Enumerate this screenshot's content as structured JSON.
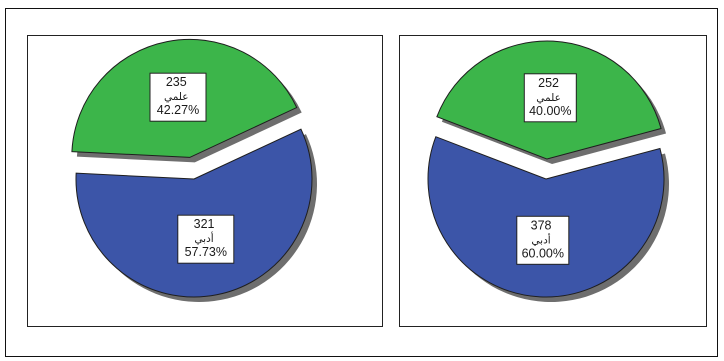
{
  "chart_data": [
    {
      "type": "pie",
      "slices": [
        {
          "count": "321",
          "category": "أدبي",
          "percent": "57.73%",
          "value": 57.73,
          "color": "#3c55a8"
        },
        {
          "count": "235",
          "category": "علمي",
          "percent": "42.27%",
          "value": 42.27,
          "color": "#3cb54a"
        }
      ],
      "exploded": "علمي",
      "legend": "none"
    },
    {
      "type": "pie",
      "slices": [
        {
          "count": "378",
          "category": "أدبي",
          "percent": "60.00%",
          "value": 60.0,
          "color": "#3c55a8"
        },
        {
          "count": "252",
          "category": "علمي",
          "percent": "40.00%",
          "value": 40.0,
          "color": "#3cb54a"
        }
      ],
      "exploded": "علمي",
      "legend": "none"
    }
  ]
}
